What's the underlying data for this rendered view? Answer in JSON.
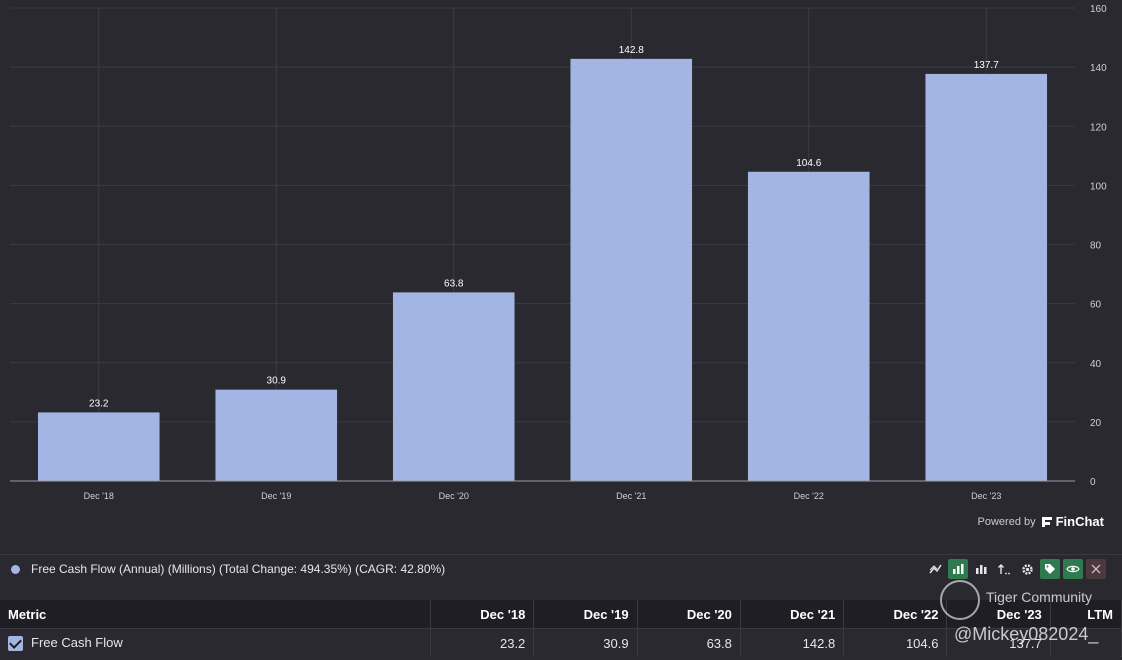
{
  "chart_data": {
    "type": "bar",
    "categories": [
      "Dec '18",
      "Dec '19",
      "Dec '20",
      "Dec '21",
      "Dec '22",
      "Dec '23"
    ],
    "values": [
      23.2,
      30.9,
      63.8,
      142.8,
      104.6,
      137.7
    ],
    "data_labels": [
      "23.2",
      "30.9",
      "63.8",
      "142.8",
      "104.6",
      "137.7"
    ],
    "yticks": [
      0,
      20,
      40,
      60,
      80,
      100,
      120,
      140,
      160
    ],
    "ylim": [
      0,
      160
    ],
    "y_axis_position": "right",
    "grid": true,
    "bar_color": "#a3b5e3"
  },
  "powered_by": {
    "prefix": "Powered by",
    "brand": "FinChat"
  },
  "legend": {
    "label": "Free Cash Flow (Annual) (Millions) (Total Change: 494.35%) (CAGR: 42.80%)"
  },
  "toolbar": {
    "icons": [
      "line-chart-icon",
      "bar-chart-icon",
      "stacked-bar-icon",
      "sort-icon",
      "gear-icon",
      "tag-icon",
      "eye-icon",
      "close-icon"
    ]
  },
  "table": {
    "headers": [
      "Metric",
      "Dec '18",
      "Dec '19",
      "Dec '20",
      "Dec '21",
      "Dec '22",
      "Dec '23",
      "LTM"
    ],
    "rows": [
      {
        "metric": "Free Cash Flow",
        "values": [
          "23.2",
          "30.9",
          "63.8",
          "142.8",
          "104.6",
          "137.7",
          ""
        ]
      }
    ]
  },
  "watermark": {
    "line1": "Tiger Community",
    "line2": "@Mickey082024_"
  }
}
